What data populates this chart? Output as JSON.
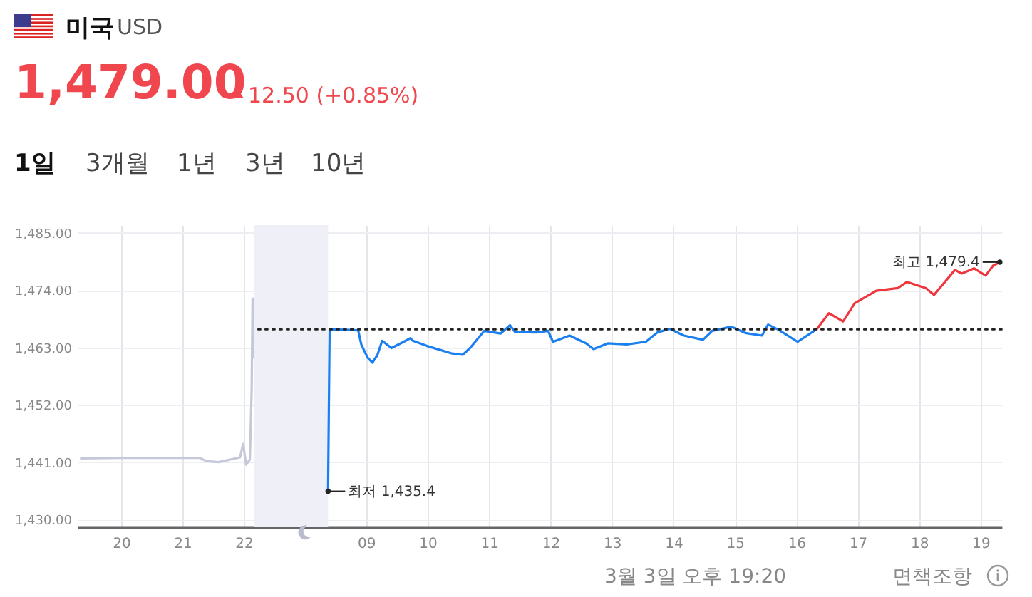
{
  "chart_data": [
    {
      "type": "line",
      "title": "미국",
      "subtitle": "USD",
      "annotations": [
        "1,479.00",
        "12.50 (+0.85%)",
        "1일",
        "3개월",
        "1년",
        "3년",
        "10년",
        "3월 3일 오후 19:20",
        "면책조항"
      ],
      "series": [
        {
          "color": "#c5c8d9",
          "x": [
            19.33,
            20.0,
            21.28,
            21.39,
            21.59,
            21.94,
            21.99,
            22.04,
            22.1,
            22.13,
            22.144,
            22.155
          ],
          "values": [
            1441.7,
            1441.8,
            1441.8,
            1441.2,
            1441.0,
            1441.9,
            1444.5,
            1440.5,
            1441.5,
            1455,
            1472.4,
            1461
          ]
        }
      ],
      "xlim": [
        19.28,
        22.17
      ],
      "xticks": [
        20,
        21,
        22
      ],
      "ylim": [
        1428.5,
        1486.5
      ],
      "yticks": [
        {
          "value": 1430,
          "label": "1,430.00"
        },
        {
          "value": 1441,
          "label": "1,441.00"
        },
        {
          "value": 1452,
          "label": "1,452.00"
        },
        {
          "value": 1463,
          "label": "1,463.00"
        },
        {
          "value": 1474,
          "label": "1,474.00"
        },
        {
          "value": 1485,
          "label": "1,485.00"
        }
      ],
      "grid": true,
      "line_style": "solid",
      "marker": "none"
    },
    {
      "type": "line",
      "annotations": [
        {
          "text": "최저 1,435.4",
          "x": 8.38,
          "y": 1435.4
        },
        {
          "text": "최고 1,479.4",
          "x": 19.31,
          "y": 1479.4
        }
      ],
      "series": [
        {
          "color": "#1a7ff0",
          "x": [
            8.38,
            8.405,
            8.87,
            8.92,
            9.02,
            9.1,
            9.18,
            9.26,
            9.41,
            9.61,
            9.72,
            9.76,
            9.99,
            10.38,
            10.57,
            10.69,
            10.92,
            11.19,
            11.34,
            11.42,
            11.77,
            11.96,
            12.04,
            12.31,
            12.58,
            12.7,
            12.93,
            13.24,
            13.55,
            13.74,
            13.94,
            14.17,
            14.48,
            14.63,
            14.94,
            15.17,
            15.44,
            15.54,
            15.71,
            16.02,
            16.33
          ],
          "values": [
            1435.4,
            1466.5,
            1466.3,
            1463.6,
            1461.1,
            1460.1,
            1461.5,
            1464.3,
            1462.9,
            1464.1,
            1464.8,
            1464.3,
            1463.3,
            1461.9,
            1461.6,
            1462.9,
            1466.2,
            1465.7,
            1467.3,
            1466,
            1465.9,
            1466.2,
            1464.1,
            1465.3,
            1463.8,
            1462.7,
            1463.8,
            1463.6,
            1464.1,
            1465.9,
            1466.6,
            1465.3,
            1464.5,
            1466.2,
            1467.0,
            1465.8,
            1465.3,
            1467.4,
            1466.4,
            1464.1,
            1466.5
          ]
        },
        {
          "color": "#f0353d",
          "x": [
            16.33,
            16.53,
            16.76,
            16.95,
            17.3,
            17.65,
            17.8,
            18.11,
            18.24,
            18.58,
            18.69,
            18.89,
            19.08,
            19.2,
            19.31
          ],
          "values": [
            1466.5,
            1469.6,
            1468,
            1471.5,
            1473.9,
            1474.4,
            1475.6,
            1474.4,
            1473.1,
            1477.9,
            1477.2,
            1478.2,
            1476.8,
            1478.7,
            1479.4
          ]
        }
      ],
      "xlim": [
        7.17,
        19.34
      ],
      "xticks": [
        {
          "value": 9,
          "label": "09"
        },
        10,
        11,
        12,
        13,
        14,
        15,
        16,
        17,
        18,
        19
      ],
      "ylim": [
        1428.5,
        1486.5
      ],
      "yticks": [
        1430,
        1441,
        1452,
        1463,
        1474,
        1485
      ],
      "tick_labels": "x",
      "ref_lines": [
        {
          "axis": "y",
          "value": 1466.5,
          "color": "#222222",
          "line_style": "dotted"
        }
      ],
      "bands": [
        {
          "axis": "x",
          "from": 7.17,
          "to": 8.38,
          "color": "#eff0f7"
        }
      ],
      "grid": true,
      "line_style": "solid",
      "marker": "none"
    }
  ]
}
